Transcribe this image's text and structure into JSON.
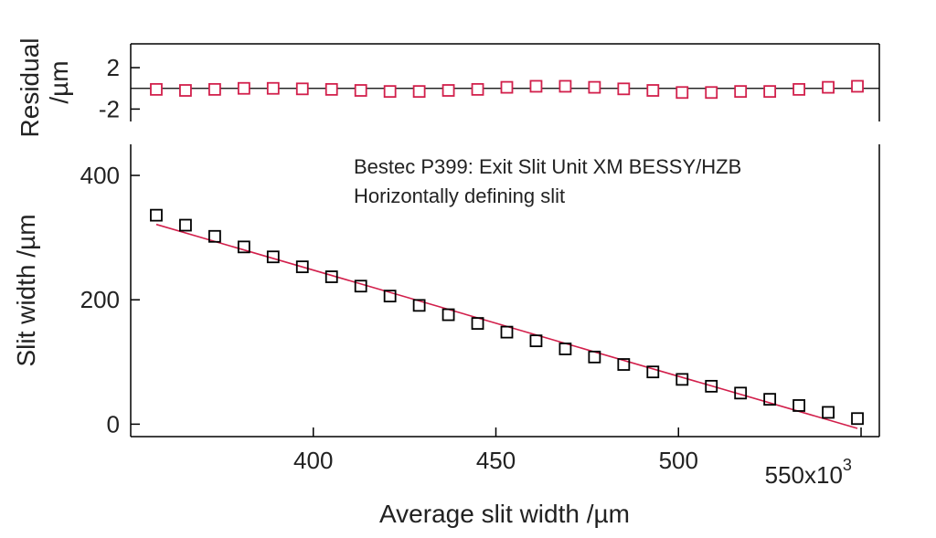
{
  "chart_data": [
    {
      "type": "scatter",
      "panel": "residual",
      "ylabel_line1": "Residual",
      "ylabel_line2": "/µm",
      "ylim": [
        -3.2,
        4.3
      ],
      "yticks": [
        2,
        -2
      ],
      "ytick_labels": [
        "2",
        "-2"
      ],
      "zero_line": true,
      "marker": "open-square",
      "marker_color": "#d21f4b",
      "line_color": "#000000",
      "x": [
        357,
        365,
        373,
        381,
        389,
        397,
        405,
        413,
        421,
        429,
        437,
        445,
        453,
        461,
        469,
        477,
        485,
        493,
        501,
        509,
        517,
        525,
        533,
        541,
        549
      ],
      "y": [
        -0.1,
        -0.2,
        -0.1,
        0.0,
        0.0,
        -0.05,
        -0.1,
        -0.2,
        -0.3,
        -0.3,
        -0.2,
        -0.1,
        0.1,
        0.2,
        0.2,
        0.1,
        -0.05,
        -0.2,
        -0.4,
        -0.4,
        -0.3,
        -0.3,
        -0.1,
        0.1,
        0.2
      ]
    },
    {
      "type": "scatter",
      "panel": "main",
      "xlabel": "Average slit width /µm",
      "ylabel": "Slit width /µm",
      "xlim": [
        350,
        555
      ],
      "ylim": [
        -20,
        450
      ],
      "xticks": [
        400,
        450,
        500,
        550
      ],
      "xtick_labels": [
        "400",
        "450",
        "500",
        "550"
      ],
      "x_multiplier_base": "x10",
      "x_multiplier_exp": "3",
      "yticks": [
        0,
        200,
        400
      ],
      "ytick_labels": [
        "0",
        "200",
        "400"
      ],
      "annotation_line1": "Bestec P399: Exit Slit Unit XM BESSY/HZB",
      "annotation_line2": "Horizontally defining slit",
      "marker": "open-square",
      "marker_color": "#000000",
      "fit_line_color": "#d21f4b",
      "x": [
        357,
        365,
        373,
        381,
        389,
        397,
        405,
        413,
        421,
        429,
        437,
        445,
        453,
        461,
        469,
        477,
        485,
        493,
        501,
        509,
        517,
        525,
        533,
        541,
        549
      ],
      "y": [
        336,
        320,
        302,
        285,
        269,
        253,
        237,
        222,
        206,
        191,
        176,
        162,
        148,
        134,
        121,
        108,
        96,
        84,
        72,
        61,
        50,
        40,
        30,
        19,
        9
      ]
    }
  ]
}
